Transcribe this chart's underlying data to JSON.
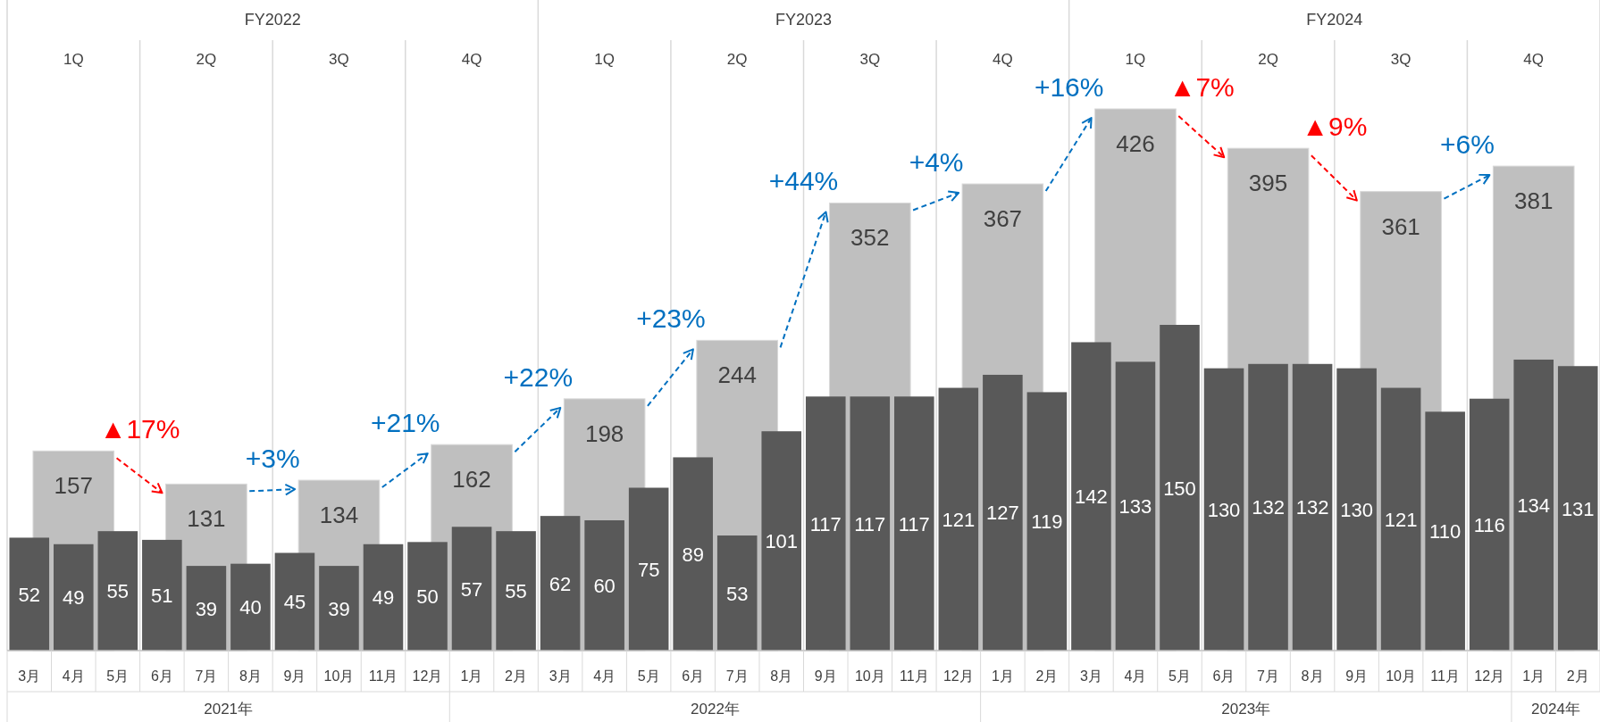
{
  "chart_data": [
    {
      "type": "bar",
      "categories": [
        "1Q",
        "2Q",
        "3Q",
        "4Q",
        "1Q",
        "2Q",
        "3Q",
        "4Q",
        "1Q",
        "2Q",
        "3Q",
        "4Q"
      ],
      "values": [
        157,
        131,
        134,
        162,
        198,
        244,
        352,
        367,
        426,
        395,
        361,
        381
      ],
      "color": "#bfbfbf",
      "tick_labels": "x",
      "data_labels": true,
      "annotations": [
        "▲17%",
        "+3%",
        "+21%",
        "+22%",
        "+23%",
        "+44%",
        "+4%",
        "+16%",
        "▲7%",
        "▲9%",
        "+6%",
        "FY2022",
        "FY2023",
        "FY2024"
      ]
    },
    {
      "type": "bar",
      "categories": [
        "3月",
        "4月",
        "5月",
        "6月",
        "7月",
        "8月",
        "9月",
        "10月",
        "11月",
        "12月",
        "1月",
        "2月",
        "3月",
        "4月",
        "5月",
        "6月",
        "7月",
        "8月",
        "9月",
        "10月",
        "11月",
        "12月",
        "1月",
        "2月",
        "3月",
        "4月",
        "5月",
        "6月",
        "7月",
        "8月",
        "9月",
        "10月",
        "11月",
        "12月",
        "1月",
        "2月"
      ],
      "values": [
        52,
        49,
        55,
        51,
        39,
        40,
        45,
        39,
        49,
        50,
        57,
        55,
        62,
        60,
        75,
        89,
        53,
        101,
        117,
        117,
        117,
        121,
        127,
        119,
        142,
        133,
        150,
        130,
        132,
        132,
        130,
        121,
        110,
        116,
        134,
        131
      ],
      "color": "#595959",
      "tick_labels": "x",
      "data_labels": true,
      "annotations": [
        "2021年",
        "2022年",
        "2023年",
        "2024年"
      ]
    }
  ]
}
